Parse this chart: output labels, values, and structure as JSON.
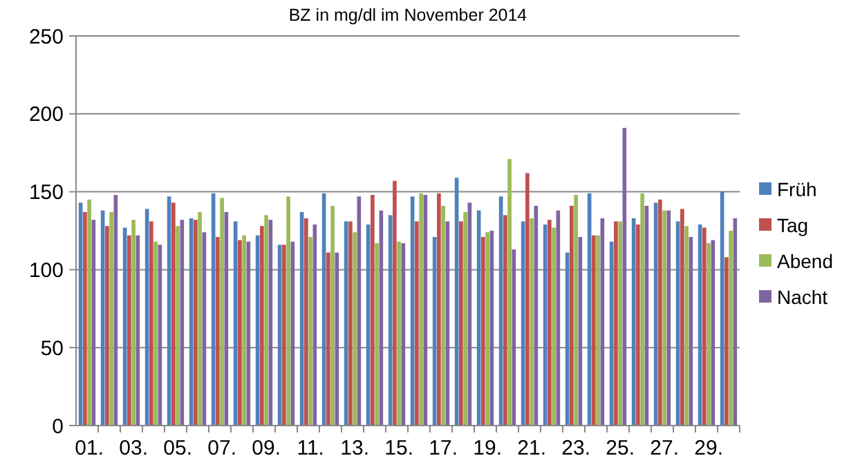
{
  "chart_data": {
    "type": "bar",
    "title": "BZ in mg/dl im  November 2014",
    "categories": [
      "01.",
      null,
      "03.",
      null,
      "05.",
      null,
      "07.",
      null,
      "09.",
      null,
      "11.",
      null,
      "13.",
      null,
      "15.",
      null,
      "17.",
      null,
      "19.",
      null,
      "21.",
      null,
      "23.",
      null,
      "25.",
      null,
      "27.",
      null,
      "29.",
      null
    ],
    "series": [
      {
        "name": "Früh",
        "color": "#4f81bd",
        "values": [
          143,
          138,
          127,
          139,
          147,
          133,
          149,
          131,
          122,
          116,
          137,
          149,
          131,
          129,
          135,
          147,
          121,
          159,
          138,
          147,
          131,
          129,
          111,
          149,
          118,
          133,
          143,
          131,
          129,
          150
        ]
      },
      {
        "name": "Tag",
        "color": "#c0504d",
        "values": [
          137,
          128,
          122,
          131,
          143,
          132,
          121,
          119,
          128,
          116,
          133,
          111,
          131,
          148,
          157,
          131,
          149,
          131,
          121,
          135,
          162,
          132,
          141,
          122,
          131,
          129,
          145,
          139,
          127,
          108
        ]
      },
      {
        "name": "Abend",
        "color": "#9bbb59",
        "values": [
          145,
          137,
          132,
          118,
          128,
          137,
          146,
          122,
          135,
          147,
          121,
          141,
          124,
          117,
          118,
          149,
          141,
          137,
          124,
          171,
          133,
          127,
          148,
          122,
          131,
          149,
          138,
          128,
          117,
          125
        ]
      },
      {
        "name": "Nacht",
        "color": "#8064a2",
        "values": [
          132,
          148,
          122,
          116,
          132,
          124,
          137,
          118,
          132,
          118,
          129,
          111,
          147,
          138,
          117,
          148,
          131,
          143,
          125,
          113,
          141,
          138,
          121,
          133,
          191,
          141,
          138,
          121,
          119,
          133
        ]
      }
    ],
    "ylim": [
      0,
      250
    ],
    "yticks": [
      0,
      50,
      100,
      150,
      200,
      250
    ],
    "grid": "y",
    "legend": "right"
  }
}
